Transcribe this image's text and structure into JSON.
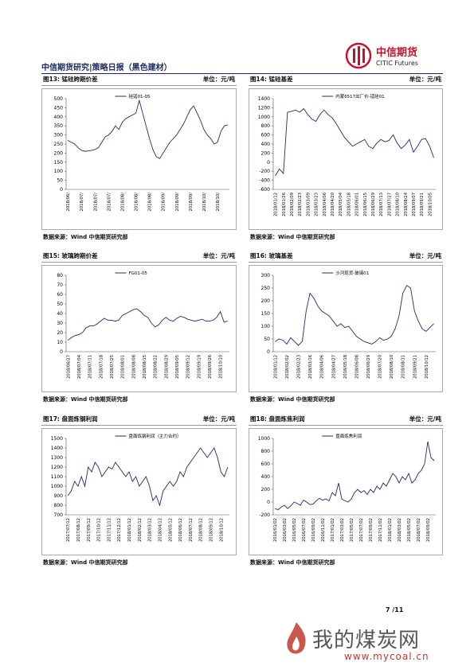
{
  "header": {
    "title": "中信期货研究|策略日报（黑色建材）",
    "logo_cn": "中信期货",
    "logo_en": "CITIC Futures"
  },
  "figures": [
    {
      "title": "图13: 锰硅跨期价差",
      "unit": "单位：元/吨",
      "source": "数据来源：Wind  中信期货研究部",
      "chart_data": {
        "type": "line",
        "ylim": [
          0,
          500
        ],
        "yticks": [
          0,
          50,
          100,
          150,
          200,
          250,
          300,
          350,
          400,
          450,
          500
        ],
        "categories": [
          "2018/06/",
          null,
          null,
          null,
          "2018/07/",
          null,
          null,
          null,
          "2018/07/",
          null,
          null,
          null,
          "2018/07/",
          null,
          null,
          null,
          "2018/08/",
          null,
          null,
          null,
          "2018/08/",
          null,
          null,
          null,
          "2018/08/",
          null,
          null,
          null,
          "2018/09/",
          null,
          null,
          null,
          "2018/09/",
          null,
          null,
          null,
          "2018/09/",
          null,
          null,
          null,
          "2018/10/",
          null,
          null,
          null,
          "2018/10/",
          null,
          null,
          null
        ],
        "series": [
          {
            "name": "硅锰01-05",
            "color": "#1f2d6b",
            "values": [
              270,
              260,
              250,
              230,
              215,
              210,
              212,
              215,
              220,
              230,
              260,
              290,
              300,
              320,
              350,
              330,
              370,
              390,
              400,
              410,
              420,
              490,
              420,
              350,
              280,
              220,
              180,
              170,
              200,
              230,
              260,
              280,
              300,
              330,
              360,
              400,
              440,
              460,
              420,
              380,
              330,
              300,
              280,
              250,
              260,
              320,
              350,
              355
            ]
          }
        ]
      }
    },
    {
      "title": "图14: 锰硅基差",
      "unit": "单位：元/吨",
      "source": "数据来源：Wind  中信期货研究部",
      "chart_data": {
        "type": "line",
        "ylim": [
          -600,
          1400
        ],
        "yticks": [
          -600,
          -400,
          -200,
          0,
          200,
          400,
          600,
          800,
          1000,
          1200,
          1400
        ],
        "categories": [
          "2018/01/12",
          null,
          "2018/01/26",
          null,
          "2018/02/09",
          null,
          "2018/02/23",
          null,
          "2018/03/09",
          null,
          "2018/03/23",
          null,
          "2018/04/06",
          null,
          "2018/04/20",
          null,
          "2018/05/04",
          null,
          "2018/05/18",
          null,
          "2018/06/01",
          null,
          "2018/06/15",
          null,
          "2018/06/29",
          null,
          "2018/07/13",
          null,
          "2018/07/27",
          null,
          "2018/08/10",
          null,
          "2018/08/24",
          null,
          "2018/09/07",
          null,
          "2018/09/21",
          null,
          "2018/10/05",
          null
        ],
        "series": [
          {
            "name": "内蒙6517出厂价-锰硅01",
            "color": "#1f2d6b",
            "values": [
              -300,
              -150,
              -250,
              1100,
              1120,
              1150,
              1100,
              1180,
              1050,
              950,
              900,
              1050,
              1150,
              1050,
              980,
              850,
              700,
              550,
              450,
              350,
              400,
              450,
              500,
              350,
              300,
              420,
              500,
              450,
              480,
              600,
              420,
              300,
              380,
              500,
              220,
              350,
              500,
              520,
              350,
              100
            ]
          }
        ]
      }
    },
    {
      "title": "图15: 玻璃跨期价差",
      "unit": "单位：元/吨",
      "source": "数据来源：Wind  中信期货研究部",
      "chart_data": {
        "type": "line",
        "ylim": [
          0,
          80
        ],
        "yticks": [
          0,
          10,
          20,
          30,
          40,
          50,
          60,
          70,
          80
        ],
        "categories": [
          "2018/06/27",
          null,
          null,
          "2018/07/04",
          null,
          null,
          "2018/07/11",
          null,
          null,
          "2018/07/18",
          null,
          null,
          "2018/07/25",
          null,
          null,
          "2018/08/01",
          null,
          null,
          "2018/08/08",
          null,
          null,
          "2018/08/15",
          null,
          null,
          "2018/08/22",
          null,
          null,
          "2018/08/29",
          null,
          null,
          "2018/09/05",
          null,
          null,
          "2018/09/12",
          null,
          null,
          "2018/09/19",
          null,
          null,
          "2018/09/26",
          null,
          null,
          "2018/10/10",
          null,
          null
        ],
        "series": [
          {
            "name": "FG01-05",
            "color": "#1f2d6b",
            "values": [
              12,
              15,
              17,
              18,
              20,
              25,
              27,
              27,
              29,
              32,
              35,
              33,
              33,
              32,
              33,
              38,
              40,
              42,
              44,
              45,
              42,
              38,
              36,
              30,
              26,
              28,
              33,
              36,
              33,
              32,
              35,
              37,
              36,
              34,
              33,
              32,
              33,
              34,
              32,
              32,
              33,
              36,
              42,
              31,
              32
            ]
          }
        ]
      }
    },
    {
      "title": "图16: 玻璃基差",
      "unit": "单位：元/吨",
      "source": "数据来源：Wind  中信期货研究部",
      "chart_data": {
        "type": "line",
        "ylim": [
          0,
          300
        ],
        "yticks": [
          0,
          50,
          100,
          150,
          200,
          250,
          300
        ],
        "categories": [
          "2018/01/12",
          null,
          null,
          "2018/02/02",
          null,
          null,
          "2018/02/23",
          null,
          null,
          "2018/03/16",
          null,
          null,
          "2018/04/06",
          null,
          null,
          "2018/04/27",
          null,
          null,
          "2018/05/18",
          null,
          null,
          "2018/06/08",
          null,
          null,
          "2018/06/29",
          null,
          null,
          "2018/07/20",
          null,
          null,
          "2018/08/10",
          null,
          null,
          "2018/08/31",
          null,
          null,
          "2018/09/21",
          null,
          null,
          "2018/10/12",
          null,
          null
        ],
        "series": [
          {
            "name": "沙河现货-玻璃01",
            "color": "#1f2d6b",
            "values": [
              40,
              50,
              45,
              30,
              55,
              40,
              25,
              40,
              160,
              230,
              210,
              180,
              160,
              150,
              140,
              120,
              100,
              110,
              95,
              100,
              80,
              60,
              50,
              40,
              35,
              30,
              40,
              55,
              45,
              50,
              60,
              90,
              140,
              230,
              260,
              250,
              160,
              120,
              90,
              80,
              95,
              110
            ]
          }
        ]
      }
    },
    {
      "title": "图17: 盘面炼钢利润",
      "unit": "单位：元/吨",
      "source": "数据来源：Wind  中信期货研究部",
      "chart_data": {
        "type": "line",
        "ylim": [
          700,
          1500
        ],
        "yticks": [
          700,
          800,
          900,
          1000,
          1100,
          1200,
          1300,
          1400,
          1500
        ],
        "categories": [
          "2017/07/12",
          null,
          null,
          "2017/08/12",
          null,
          null,
          "2017/09/12",
          null,
          null,
          "2017/10/12",
          null,
          null,
          "2017/11/12",
          null,
          null,
          "2017/12/12",
          null,
          null,
          "2018/01/12",
          null,
          null,
          "2018/02/12",
          null,
          null,
          "2018/03/12",
          null,
          null,
          "2018/04/12",
          null,
          null,
          "2018/05/12",
          null,
          null,
          "2018/06/12",
          null,
          null,
          "2018/07/12",
          null,
          null,
          "2018/08/12",
          null,
          null,
          "2018/09/12",
          null,
          null,
          "2018/10/12",
          null,
          null
        ],
        "series": [
          {
            "name": "盘面炼钢利润（主力合约）",
            "color": "#1f2d6b",
            "values": [
              900,
              950,
              1050,
              1000,
              1100,
              1000,
              1200,
              1150,
              1250,
              1200,
              1100,
              1150,
              1200,
              1180,
              1250,
              1200,
              1150,
              1100,
              1150,
              1050,
              1100,
              1000,
              1050,
              1100,
              1000,
              850,
              900,
              800,
              950,
              1000,
              1050,
              1000,
              1050,
              1150,
              1100,
              1200,
              1250,
              1300,
              1350,
              1400,
              1350,
              1300,
              1350,
              1400,
              1300,
              1150,
              1100,
              1200
            ]
          }
        ]
      }
    },
    {
      "title": "图18: 盘面炼焦利润",
      "unit": "单位：元/吨",
      "source": "数据来源：Wind  中信期货研究部",
      "chart_data": {
        "type": "line",
        "ylim": [
          -200,
          1000
        ],
        "yticks": [
          -200,
          0,
          200,
          400,
          600,
          800,
          1000
        ],
        "categories": [
          "2016/01/02",
          null,
          null,
          "2016/03/02",
          null,
          null,
          "2016/05/02",
          null,
          null,
          "2016/07/02",
          null,
          null,
          "2016/09/02",
          null,
          null,
          "2016/11/02",
          null,
          null,
          "2017/01/02",
          null,
          null,
          "2017/03/02",
          null,
          null,
          "2017/05/02",
          null,
          null,
          "2017/07/02",
          null,
          null,
          "2017/09/02",
          null,
          null,
          "2017/11/02",
          null,
          null,
          "2018/01/02",
          null,
          null,
          "2018/03/02",
          null,
          null,
          "2018/05/02",
          null,
          null,
          "2018/07/02",
          null,
          null,
          "2018/09/02",
          null,
          null
        ],
        "series": [
          {
            "name": "盘面炼焦利润",
            "color": "#1f2d6b",
            "values": [
              -100,
              -120,
              -80,
              -50,
              -100,
              -60,
              0,
              -20,
              -50,
              30,
              0,
              -40,
              -30,
              20,
              60,
              30,
              50,
              20,
              150,
              100,
              300,
              50,
              20,
              0,
              50,
              150,
              200,
              150,
              180,
              120,
              200,
              150,
              250,
              200,
              300,
              250,
              350,
              450,
              400,
              300,
              400,
              350,
              450,
              300,
              350,
              450,
              500,
              600,
              950,
              700,
              650
            ]
          }
        ]
      }
    }
  ],
  "footer": {
    "page": "7 /11"
  },
  "watermark": {
    "text": "我的煤炭网",
    "url": "www.mycoal.cn"
  }
}
